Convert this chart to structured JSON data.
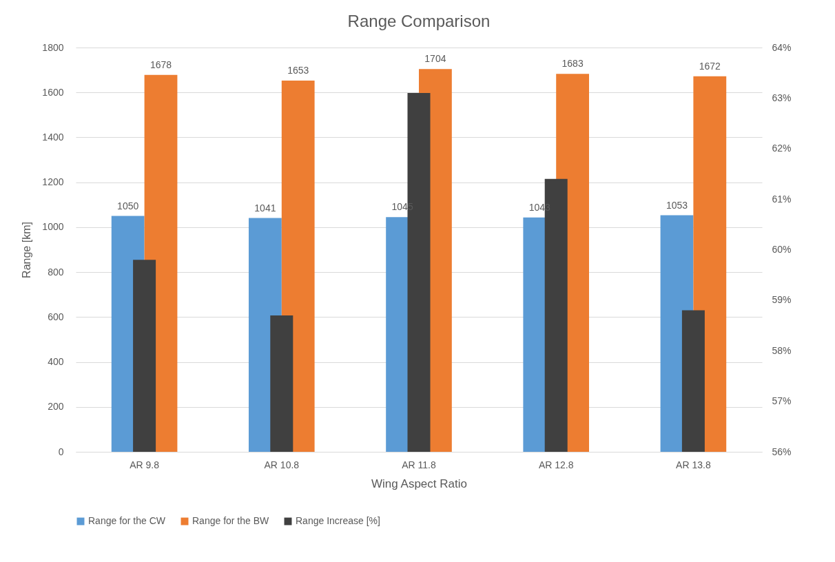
{
  "chart_data": {
    "type": "bar",
    "title": "Range Comparison",
    "xlabel": "Wing Aspect Ratio",
    "ylabel": "Range [km]",
    "categories": [
      "AR 9.8",
      "AR 10.8",
      "AR 11.8",
      "AR 12.8",
      "AR 13.8"
    ],
    "series": [
      {
        "name": "Range for the CW",
        "color": "#5b9bd5",
        "values": [
          1050,
          1041,
          1045,
          1043,
          1053
        ],
        "value_labels": [
          "1050",
          "1041",
          "1045",
          "1043",
          "1053"
        ]
      },
      {
        "name": "Range for the BW",
        "color": "#ed7d31",
        "values": [
          1678,
          1653,
          1704,
          1683,
          1672
        ],
        "value_labels": [
          "1678",
          "1653",
          "1704",
          "1683",
          "1672"
        ]
      },
      {
        "name": "Range Increase [%]",
        "color": "#404040",
        "axis": "y2",
        "values": [
          59.8,
          58.7,
          63.1,
          61.4,
          58.8
        ]
      }
    ],
    "ylim": [
      0,
      1800
    ],
    "yticks": [
      0,
      200,
      400,
      600,
      800,
      1000,
      1200,
      1400,
      1600,
      1800
    ],
    "y2lim": [
      56,
      64
    ],
    "y2ticks": [
      {
        "value": 56,
        "label": "56%"
      },
      {
        "value": 57,
        "label": "57%"
      },
      {
        "value": 58,
        "label": "58%"
      },
      {
        "value": 59,
        "label": "59%"
      },
      {
        "value": 60,
        "label": "60%"
      },
      {
        "value": 61,
        "label": "61%"
      },
      {
        "value": 62,
        "label": "62%"
      },
      {
        "value": 63,
        "label": "63%"
      },
      {
        "value": 64,
        "label": "64%"
      }
    ],
    "grid": "y",
    "legend": "bottom"
  }
}
